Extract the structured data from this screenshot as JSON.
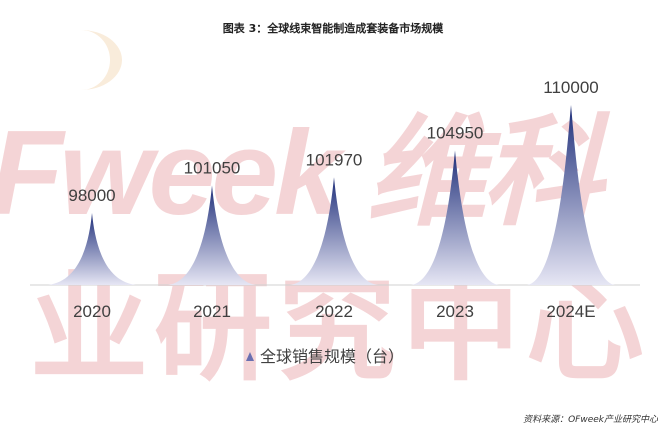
{
  "title": "图表 3：全球线束智能制造成套装备市场规模",
  "watermark": {
    "line1": "Fweek 维科",
    "line2": "业研究中心"
  },
  "source": "资料来源：OFweek产业研究中心",
  "colors": {
    "peak_top": "#1f2f7a",
    "peak_bottom": "#e6e6f4",
    "axis": "#d0d0d0",
    "text": "#404040"
  },
  "chart_data": {
    "type": "area",
    "title": "图表 3：全球线束智能制造成套装备市场规模",
    "categories": [
      "2020",
      "2021",
      "2022",
      "2023",
      "2024E"
    ],
    "series": [
      {
        "name": "全球销售规模（台）",
        "values": [
          98000,
          101050,
          101970,
          104950,
          110000
        ]
      }
    ],
    "data_labels": [
      "98000",
      "101050",
      "101970",
      "104950",
      "110000"
    ],
    "ylim": [
      90000,
      112000
    ],
    "grid": false,
    "legend": "bottom",
    "legend_label": "全球销售规模（台）",
    "marker": "triangle-peak"
  }
}
